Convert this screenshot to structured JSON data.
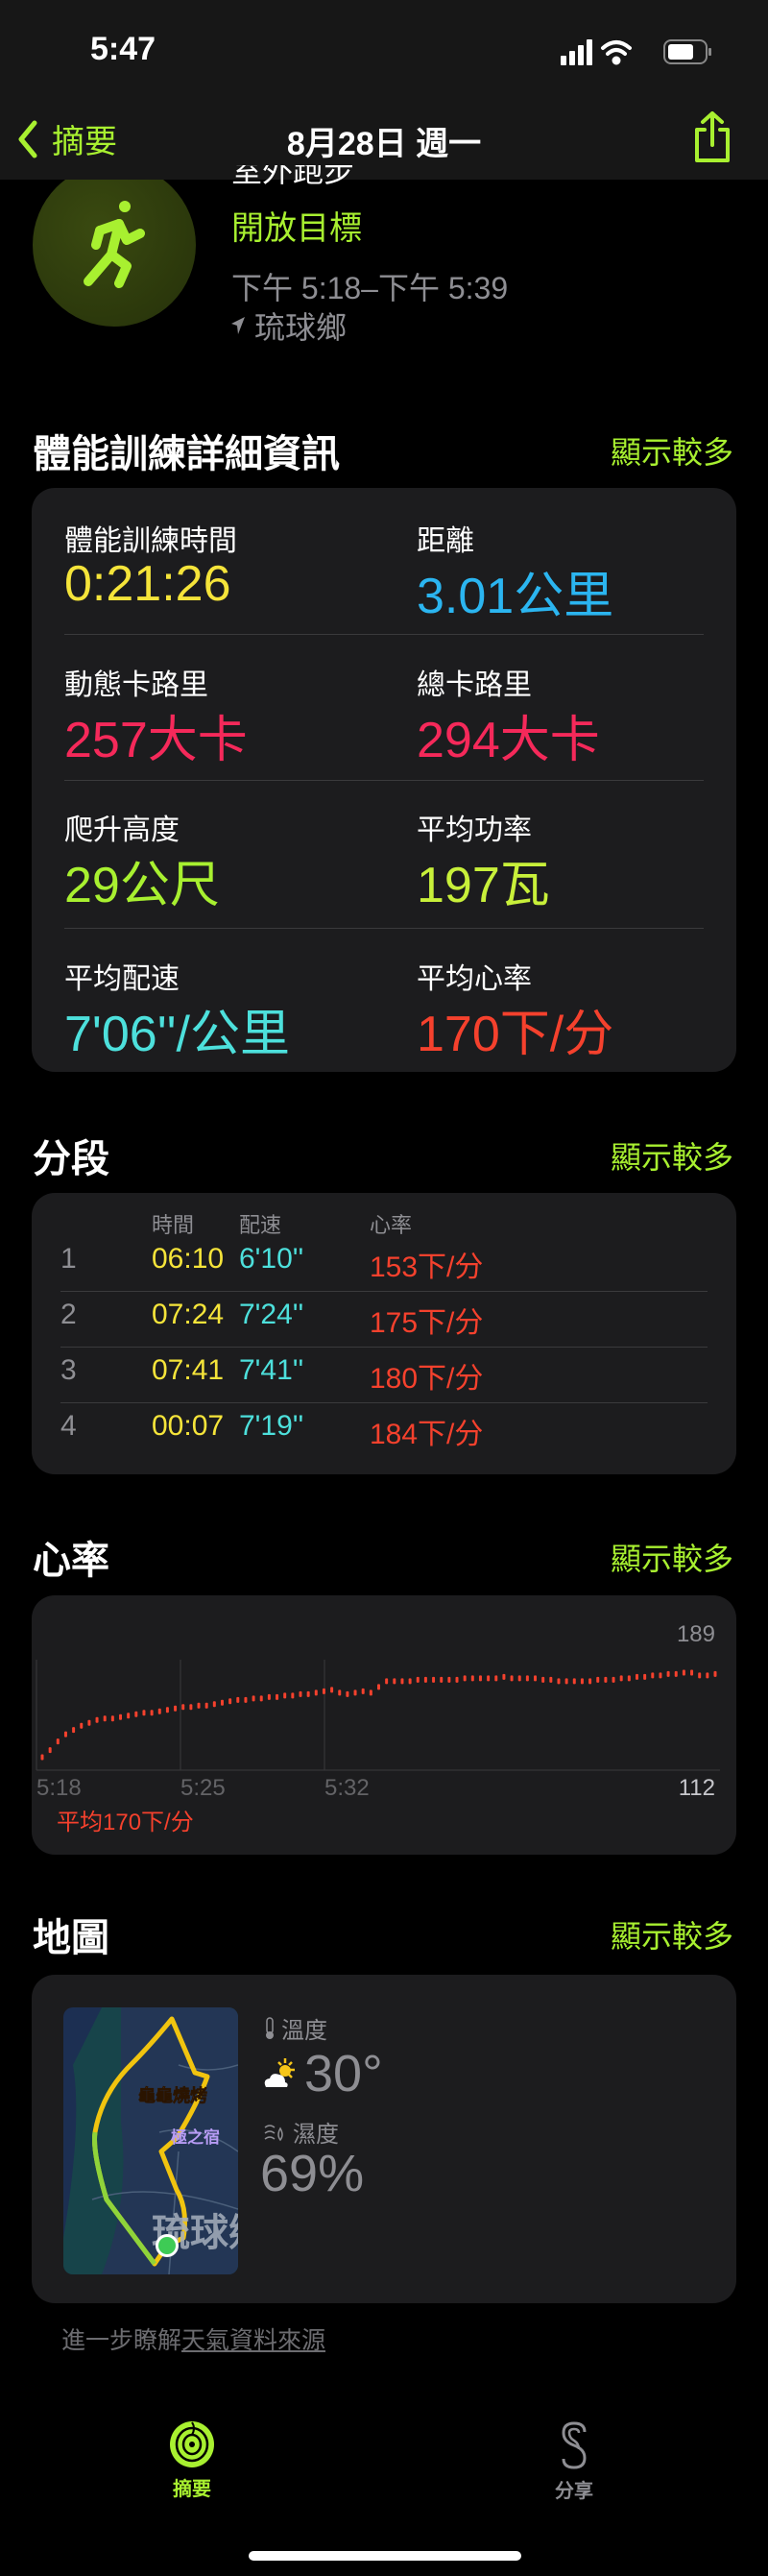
{
  "status_bar": {
    "time": "5:47"
  },
  "nav": {
    "back_label": "摘要",
    "title": "8月28日 週一"
  },
  "workout": {
    "type": "室外跑步",
    "goal": "開放目標",
    "time_range": "下午 5:18–下午 5:39",
    "location": "琉球鄉"
  },
  "details": {
    "title": "體能訓練詳細資訊",
    "more": "顯示較多",
    "metrics": [
      {
        "label": "體能訓練時間",
        "value": "0:21:26",
        "color": "#f5e43a"
      },
      {
        "label": "距離",
        "value": "3.01公里",
        "color": "#2bb5f0"
      },
      {
        "label": "動態卡路里",
        "value": "257大卡",
        "color": "#f5295a"
      },
      {
        "label": "總卡路里",
        "value": "294大卡",
        "color": "#f5295a"
      },
      {
        "label": "爬升高度",
        "value": "29公尺",
        "color": "#a8f030"
      },
      {
        "label": "平均功率",
        "value": "197瓦",
        "color": "#c8f03a"
      },
      {
        "label": "平均配速",
        "value": "7'06''/公里",
        "color": "#4de0dc"
      },
      {
        "label": "平均心率",
        "value": "170下/分",
        "color": "#f5412d"
      }
    ]
  },
  "splits": {
    "title": "分段",
    "more": "顯示較多",
    "headers": [
      "時間",
      "配速",
      "心率"
    ],
    "rows": [
      {
        "n": "1",
        "time": "06:10",
        "pace": "6'10''",
        "hr": "153下/分"
      },
      {
        "n": "2",
        "time": "07:24",
        "pace": "7'24''",
        "hr": "175下/分"
      },
      {
        "n": "3",
        "time": "07:41",
        "pace": "7'41''",
        "hr": "180下/分"
      },
      {
        "n": "4",
        "time": "00:07",
        "pace": "7'19''",
        "hr": "184下/分"
      }
    ]
  },
  "heart_rate": {
    "title": "心率",
    "more": "顯示較多",
    "average": "平均170下/分"
  },
  "chart_data": {
    "type": "scatter",
    "x_ticks": [
      "5:18",
      "5:25",
      "5:32"
    ],
    "y_max_label": "189",
    "y_min_label": "112",
    "ylim": [
      112,
      189
    ],
    "xlim": [
      "5:18",
      "5:39"
    ],
    "color": "#f5412d",
    "values": [
      121,
      126,
      132,
      137,
      140,
      143,
      145,
      147,
      148,
      148,
      149,
      150,
      151,
      152,
      152,
      153,
      154,
      155,
      156,
      156,
      157,
      157,
      158,
      159,
      160,
      161,
      161,
      162,
      162,
      163,
      163,
      164,
      164,
      165,
      165,
      166,
      167,
      168,
      166,
      165,
      166,
      167,
      166,
      170,
      174,
      174,
      174,
      174,
      175,
      175,
      175,
      175,
      175,
      175,
      176,
      176,
      176,
      176,
      176,
      177,
      176,
      176,
      176,
      176,
      175,
      175,
      174,
      174,
      174,
      174,
      174,
      175,
      175,
      175,
      176,
      176,
      177,
      177,
      178,
      178,
      179,
      179,
      180,
      180,
      178,
      178,
      179
    ]
  },
  "map": {
    "title": "地圖",
    "more": "顯示較多",
    "labels": [
      "龜龜燒烤",
      "極之宿",
      "琉球鄉"
    ],
    "temp_label": "溫度",
    "temp": "30°",
    "humidity_label": "濕度",
    "humidity": "69%"
  },
  "footer": {
    "prefix": "進一步瞭解",
    "link": "天氣資料來源"
  },
  "tabs": [
    {
      "label": "摘要",
      "active": true
    },
    {
      "label": "分享",
      "active": false
    }
  ]
}
